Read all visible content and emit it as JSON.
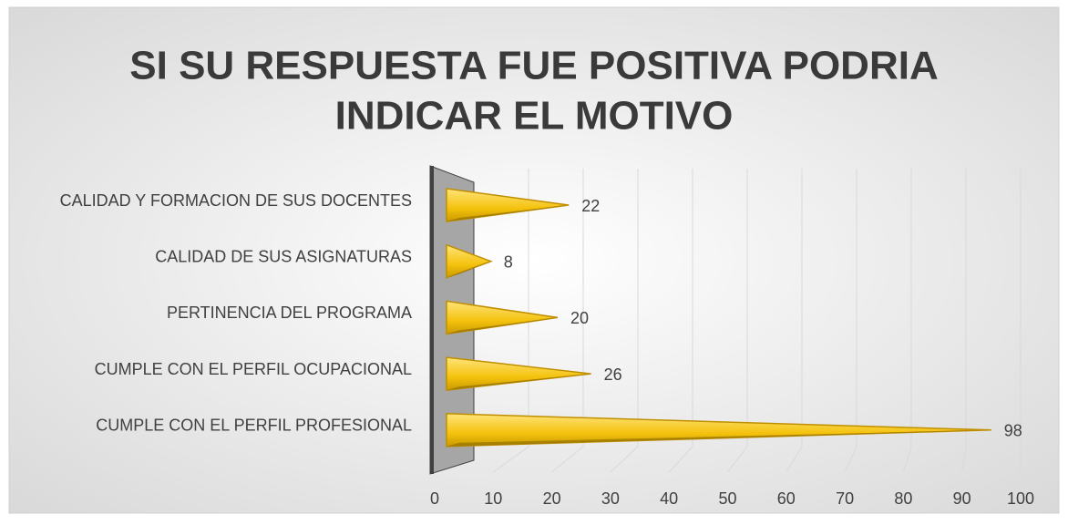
{
  "chart_data": {
    "type": "bar",
    "orientation": "horizontal",
    "title": [
      "SI SU RESPUESTA FUE POSITIVA PODRIA",
      "INDICAR EL MOTIVO"
    ],
    "categories": [
      "CALIDAD Y FORMACION DE SUS DOCENTES",
      "CALIDAD DE SUS ASIGNATURAS",
      "PERTINENCIA DEL PROGRAMA",
      "CUMPLE CON EL PERFIL OCUPACIONAL",
      "CUMPLE CON EL PERFIL PROFESIONAL"
    ],
    "values": [
      22,
      8,
      20,
      26,
      98
    ],
    "color": "#f4c20d",
    "xlim": [
      0,
      100
    ],
    "xticks": [
      0,
      10,
      20,
      30,
      40,
      50,
      60,
      70,
      80,
      90,
      100
    ],
    "grid": true
  }
}
